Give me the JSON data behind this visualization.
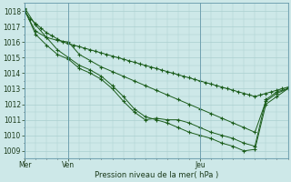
{
  "bg_color": "#cde8e8",
  "grid_color": "#aacfcf",
  "line_color": "#1a5c1a",
  "marker_color": "#1a5c1a",
  "ylim": [
    1008.5,
    1018.5
  ],
  "yticks": [
    1009,
    1010,
    1011,
    1012,
    1013,
    1014,
    1015,
    1016,
    1017,
    1018
  ],
  "xlabel": "Pression niveau de la mer( hPa )",
  "day_labels": [
    "Mer",
    "Ven",
    "Jeu"
  ],
  "day_positions": [
    0,
    24,
    96
  ],
  "xlim": [
    0,
    144
  ],
  "series": [
    {
      "x": [
        0,
        3,
        6,
        9,
        12,
        15,
        18,
        21,
        24,
        27,
        30,
        33,
        36,
        39,
        42,
        45,
        48,
        51,
        54,
        57,
        60,
        63,
        66,
        69,
        72,
        75,
        78,
        81,
        84,
        87,
        90,
        93,
        96,
        99,
        102,
        105,
        108,
        111,
        114,
        117,
        120,
        123,
        126,
        129,
        132,
        135,
        138,
        141,
        144
      ],
      "y": [
        1018.0,
        1017.5,
        1017.2,
        1016.9,
        1016.6,
        1016.4,
        1016.2,
        1016.0,
        1015.9,
        1015.8,
        1015.7,
        1015.6,
        1015.5,
        1015.4,
        1015.3,
        1015.2,
        1015.1,
        1015.0,
        1014.9,
        1014.8,
        1014.7,
        1014.6,
        1014.5,
        1014.4,
        1014.3,
        1014.2,
        1014.1,
        1014.0,
        1013.9,
        1013.8,
        1013.7,
        1013.6,
        1013.5,
        1013.4,
        1013.3,
        1013.2,
        1013.1,
        1013.0,
        1012.9,
        1012.8,
        1012.7,
        1012.6,
        1012.5,
        1012.6,
        1012.7,
        1012.8,
        1012.9,
        1013.0,
        1013.1
      ]
    },
    {
      "x": [
        0,
        6,
        12,
        18,
        24,
        30,
        36,
        42,
        48,
        54,
        60,
        66,
        72,
        78,
        84,
        90,
        96,
        102,
        108,
        114,
        120,
        126,
        132,
        138,
        144
      ],
      "y": [
        1018.0,
        1016.7,
        1016.3,
        1016.1,
        1016.0,
        1015.2,
        1014.8,
        1014.4,
        1014.1,
        1013.8,
        1013.5,
        1013.2,
        1012.9,
        1012.6,
        1012.3,
        1012.0,
        1011.7,
        1011.4,
        1011.1,
        1010.8,
        1010.5,
        1010.2,
        1012.2,
        1012.7,
        1013.0
      ]
    },
    {
      "x": [
        0,
        6,
        12,
        18,
        24,
        30,
        36,
        42,
        48,
        54,
        60,
        66,
        72,
        78,
        84,
        90,
        96,
        102,
        108,
        114,
        120,
        126,
        132,
        138,
        144
      ],
      "y": [
        1018.1,
        1016.5,
        1015.8,
        1015.2,
        1014.9,
        1014.3,
        1014.0,
        1013.6,
        1013.0,
        1012.2,
        1011.5,
        1011.0,
        1011.1,
        1011.0,
        1011.0,
        1010.8,
        1010.5,
        1010.2,
        1010.0,
        1009.8,
        1009.5,
        1009.3,
        1012.3,
        1012.8,
        1013.0
      ]
    },
    {
      "x": [
        0,
        6,
        12,
        18,
        24,
        30,
        36,
        42,
        48,
        54,
        60,
        66,
        72,
        78,
        84,
        90,
        96,
        102,
        108,
        114,
        120,
        126,
        132,
        138,
        144
      ],
      "y": [
        1018.2,
        1017.1,
        1016.3,
        1015.5,
        1015.0,
        1014.5,
        1014.2,
        1013.8,
        1013.2,
        1012.5,
        1011.7,
        1011.2,
        1011.0,
        1010.8,
        1010.5,
        1010.2,
        1010.0,
        1009.8,
        1009.5,
        1009.3,
        1009.0,
        1009.1,
        1012.0,
        1012.5,
        1013.0
      ]
    }
  ]
}
